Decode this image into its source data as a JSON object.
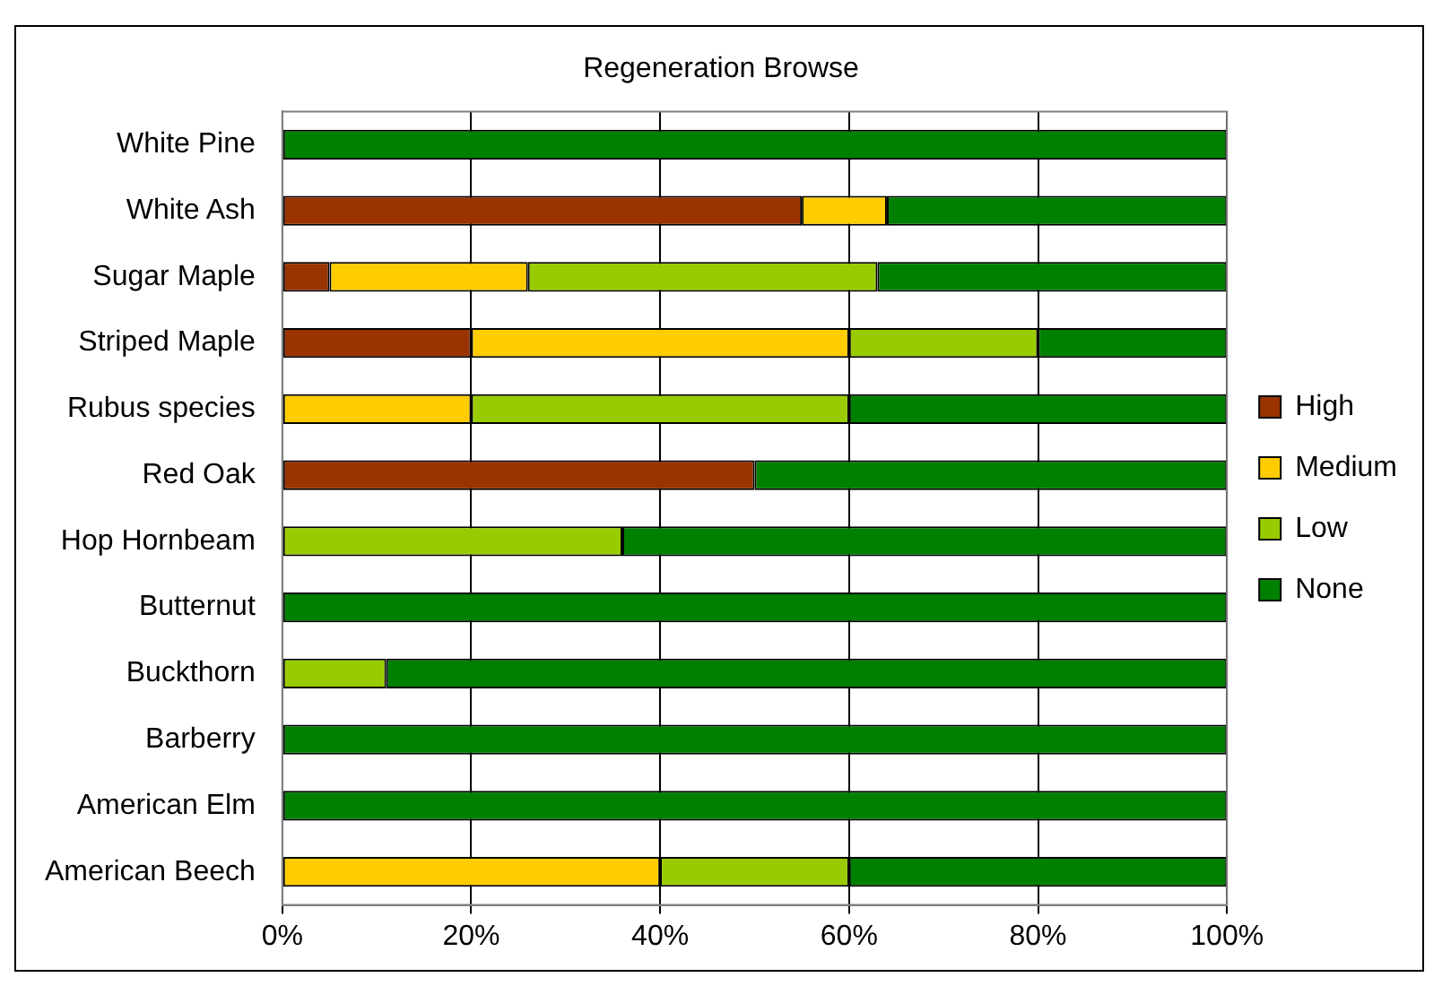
{
  "chart_data": {
    "type": "bar",
    "orientation": "horizontal",
    "stacked": true,
    "title": "Regeneration Browse",
    "categories": [
      "White Pine",
      "White Ash",
      "Sugar Maple",
      "Striped Maple",
      "Rubus species",
      "Red Oak",
      "Hop Hornbeam",
      "Butternut",
      "Buckthorn",
      "Barberry",
      "American Elm",
      "American Beech"
    ],
    "series": [
      {
        "name": "High",
        "color": "#993300",
        "values": [
          0,
          55,
          5,
          20,
          0,
          50,
          0,
          0,
          0,
          0,
          0,
          0
        ]
      },
      {
        "name": "Medium",
        "color": "#ffcc00",
        "values": [
          0,
          9,
          21,
          40,
          20,
          0,
          0,
          0,
          0,
          0,
          0,
          40
        ]
      },
      {
        "name": "Low",
        "color": "#99cc00",
        "values": [
          0,
          0,
          37,
          20,
          40,
          0,
          36,
          0,
          11,
          0,
          0,
          20
        ]
      },
      {
        "name": "None",
        "color": "#008000",
        "values": [
          100,
          36,
          37,
          20,
          40,
          50,
          64,
          100,
          89,
          100,
          100,
          40
        ]
      }
    ],
    "xlim": [
      0,
      100
    ],
    "xticks": [
      {
        "value": 0,
        "label": "0%"
      },
      {
        "value": 20,
        "label": "20%"
      },
      {
        "value": 40,
        "label": "40%"
      },
      {
        "value": 60,
        "label": "60%"
      },
      {
        "value": 80,
        "label": "80%"
      },
      {
        "value": 100,
        "label": "100%"
      }
    ],
    "grid": "x",
    "legend": "right"
  }
}
